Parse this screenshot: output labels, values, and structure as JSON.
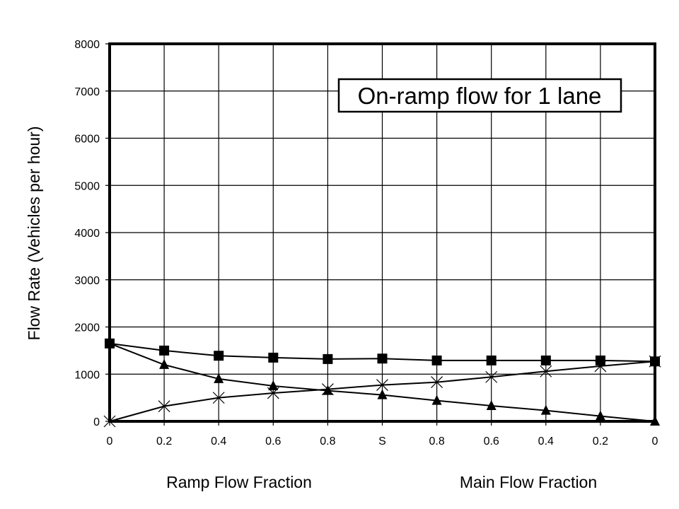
{
  "chart_data": {
    "type": "line",
    "title": "On-ramp flow for 1 lane",
    "ylabel": "Flow Rate (Vehicles per hour)",
    "xlabel_left": "Ramp Flow Fraction",
    "xlabel_right": "Main Flow Fraction",
    "categories": [
      "0",
      "0.2",
      "0.4",
      "0.6",
      "0.8",
      "S",
      "0.8",
      "0.6",
      "0.4",
      "0.2",
      "0"
    ],
    "ylim": [
      0,
      8000
    ],
    "yticks": [
      0,
      1000,
      2000,
      3000,
      4000,
      5000,
      6000,
      7000,
      8000
    ],
    "grid": true,
    "series": [
      {
        "marker": "square",
        "values": [
          1650,
          1500,
          1390,
          1350,
          1320,
          1330,
          1290,
          1290,
          1290,
          1290,
          1270
        ]
      },
      {
        "marker": "triangle",
        "values": [
          1650,
          1200,
          900,
          750,
          650,
          560,
          440,
          330,
          230,
          110,
          0
        ]
      },
      {
        "marker": "x",
        "values": [
          0,
          320,
          500,
          600,
          680,
          770,
          830,
          940,
          1060,
          1170,
          1270
        ]
      }
    ]
  }
}
